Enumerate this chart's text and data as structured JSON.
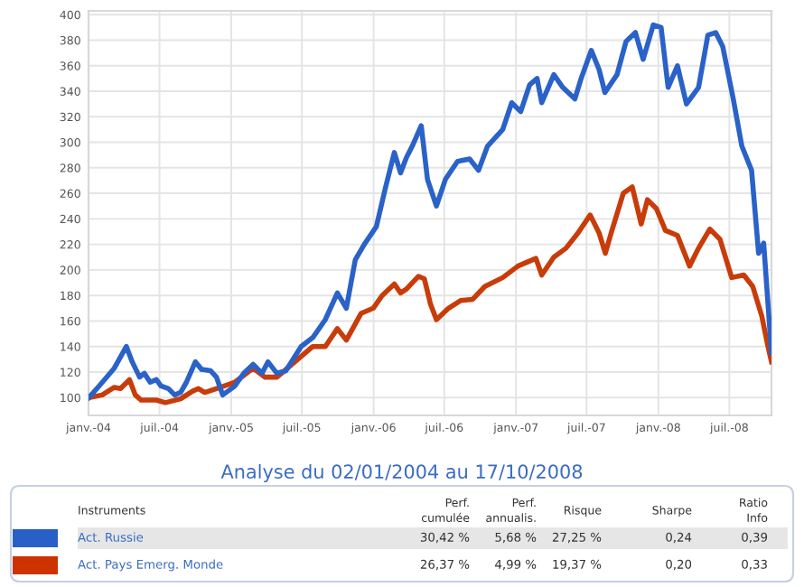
{
  "chart_data": [
    {
      "type": "line",
      "xlim": [
        "2004-01-01",
        "2008-10-17"
      ],
      "ylim": [
        86,
        403
      ],
      "xticks": [
        {
          "value": "2004-01-01",
          "label": "janv.-04"
        },
        {
          "value": "2004-07-01",
          "label": "juil.-04"
        },
        {
          "value": "2005-01-01",
          "label": "janv.-05"
        },
        {
          "value": "2005-07-01",
          "label": "juil.-05"
        },
        {
          "value": "2006-01-01",
          "label": "janv.-06"
        },
        {
          "value": "2006-07-01",
          "label": "juil.-06"
        },
        {
          "value": "2007-01-01",
          "label": "janv.-07"
        },
        {
          "value": "2007-07-01",
          "label": "juil.-07"
        },
        {
          "value": "2008-01-01",
          "label": "janv.-08"
        },
        {
          "value": "2008-07-01",
          "label": "juil.-08"
        }
      ],
      "yticks": [
        100,
        120,
        140,
        160,
        180,
        200,
        220,
        240,
        260,
        280,
        300,
        320,
        340,
        360,
        380,
        400
      ],
      "grid": true,
      "line_style": "solid",
      "marker": "none",
      "series": [
        {
          "color": "#2a62c8",
          "x": [
            "2004-01-02",
            "2004-01-28",
            "2004-03-07",
            "2004-04-07",
            "2004-04-22",
            "2004-05-11",
            "2004-05-23",
            "2004-06-07",
            "2004-06-23",
            "2004-07-05",
            "2004-07-24",
            "2004-08-09",
            "2004-08-24",
            "2004-09-08",
            "2004-10-01",
            "2004-10-17",
            "2004-11-09",
            "2004-11-24",
            "2004-12-10",
            "2005-01-10",
            "2005-02-02",
            "2005-02-26",
            "2005-03-21",
            "2005-04-05",
            "2005-04-28",
            "2005-05-21",
            "2005-06-29",
            "2005-07-29",
            "2005-08-30",
            "2005-09-30",
            "2005-10-23",
            "2005-11-15",
            "2005-12-08",
            "2006-01-08",
            "2006-01-31",
            "2006-02-23",
            "2006-03-11",
            "2006-03-26",
            "2006-04-10",
            "2006-05-03",
            "2006-05-19",
            "2006-06-11",
            "2006-07-04",
            "2006-08-04",
            "2006-09-04",
            "2006-09-27",
            "2006-10-20",
            "2006-11-28",
            "2006-12-21",
            "2007-01-13",
            "2007-02-05",
            "2007-02-24",
            "2007-03-08",
            "2007-04-08",
            "2007-05-01",
            "2007-06-01",
            "2007-06-17",
            "2007-07-13",
            "2007-08-02",
            "2007-08-17",
            "2007-09-17",
            "2007-10-10",
            "2007-11-03",
            "2007-11-23",
            "2007-12-19",
            "2008-01-08",
            "2008-01-26",
            "2008-02-19",
            "2008-03-13",
            "2008-04-13",
            "2008-05-07",
            "2008-05-27",
            "2008-06-14",
            "2008-07-11",
            "2008-08-02",
            "2008-08-27",
            "2008-09-14",
            "2008-09-27",
            "2008-10-17"
          ],
          "values": [
            100,
            109,
            123,
            140,
            128,
            116,
            119,
            112,
            114,
            109,
            107,
            102,
            104,
            112,
            128,
            122,
            121,
            116,
            102,
            109,
            119,
            126,
            119,
            128,
            119,
            121,
            140,
            147,
            161,
            182,
            170,
            208,
            220,
            234,
            264,
            292,
            276,
            288,
            297,
            313,
            271,
            250,
            271,
            285,
            287,
            278,
            297,
            310,
            331,
            324,
            345,
            350,
            331,
            353,
            343,
            334,
            350,
            372,
            357,
            339,
            353,
            379,
            386,
            365,
            392,
            390,
            343,
            360,
            330,
            343,
            384,
            386,
            375,
            334,
            297,
            278,
            213,
            221,
            135
          ]
        },
        {
          "color": "#c83c0a",
          "x": [
            "2004-01-02",
            "2004-02-05",
            "2004-03-07",
            "2004-03-23",
            "2004-04-15",
            "2004-04-30",
            "2004-05-15",
            "2004-06-23",
            "2004-07-16",
            "2004-08-24",
            "2004-09-24",
            "2004-10-09",
            "2004-10-25",
            "2004-11-24",
            "2005-01-10",
            "2005-02-26",
            "2005-03-28",
            "2005-04-28",
            "2005-06-13",
            "2005-07-29",
            "2005-08-30",
            "2005-09-30",
            "2005-10-23",
            "2005-11-30",
            "2005-12-31",
            "2006-01-23",
            "2006-02-23",
            "2006-03-11",
            "2006-03-26",
            "2006-04-26",
            "2006-05-11",
            "2006-05-27",
            "2006-06-11",
            "2006-07-12",
            "2006-08-12",
            "2006-09-12",
            "2006-10-13",
            "2006-11-28",
            "2007-01-06",
            "2007-02-21",
            "2007-03-08",
            "2007-04-08",
            "2007-05-09",
            "2007-06-09",
            "2007-07-10",
            "2007-08-02",
            "2007-08-18",
            "2007-09-02",
            "2007-10-03",
            "2007-10-26",
            "2007-11-18",
            "2007-12-04",
            "2007-12-27",
            "2008-01-19",
            "2008-02-19",
            "2008-03-21",
            "2008-04-13",
            "2008-05-12",
            "2008-06-07",
            "2008-07-07",
            "2008-08-07",
            "2008-08-30",
            "2008-09-22",
            "2008-10-08",
            "2008-10-17"
          ],
          "values": [
            100,
            102,
            108,
            107,
            114,
            102,
            98,
            98,
            96,
            99,
            105,
            107,
            104,
            107,
            112,
            123,
            116,
            116,
            128,
            140,
            140,
            154,
            145,
            166,
            170,
            180,
            189,
            182,
            185,
            195,
            193,
            173,
            161,
            170,
            176,
            177,
            187,
            194,
            203,
            209,
            196,
            210,
            217,
            229,
            243,
            229,
            213,
            229,
            260,
            265,
            236,
            255,
            248,
            231,
            227,
            203,
            217,
            232,
            224,
            194,
            196,
            187,
            164,
            140,
            128
          ]
        }
      ]
    },
    {
      "type": "other",
      "title": "Analyse du 02/01/2004 au 17/10/2008",
      "legend_title": "Instruments",
      "categories": [
        "Perf.\ncumulée",
        "Perf.\nannualis.",
        "Risque",
        "Sharpe",
        "Ratio\nInfo"
      ],
      "series": [
        {
          "name": "Act. Russie",
          "color": "#2860c8",
          "values": [
            30.42,
            5.68,
            27.25,
            0.24,
            0.39
          ],
          "value_labels": [
            "30,42 %",
            "5,68 %",
            "27,25 %",
            "0,24",
            "0,39"
          ]
        },
        {
          "name": "Act. Pays Emerg. Monde",
          "color": "#cc3300",
          "values": [
            26.37,
            4.99,
            19.37,
            0.2,
            0.33
          ],
          "value_labels": [
            "26,37 %",
            "4,99 %",
            "19,37 %",
            "0,20",
            "0,33"
          ]
        }
      ]
    }
  ]
}
